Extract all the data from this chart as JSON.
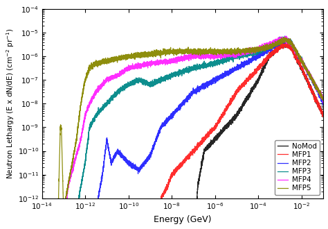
{
  "title": "",
  "xlabel": "Energy (GeV)",
  "ylabel": "Neutron Lethargy (E x dN/dE) (cm$^{-2}$ pr$^{-1}$)",
  "xlim_log": [
    -14,
    -1
  ],
  "ylim_log": [
    -12,
    -4
  ],
  "legend_labels": [
    "NoMod",
    "MFP1",
    "MFP2",
    "MFP3",
    "MFP4",
    "MFP5"
  ],
  "legend_colors": [
    "#1a1a1a",
    "#ff2222",
    "#2222ff",
    "#008888",
    "#ff22ff",
    "#888800"
  ],
  "background_color": "#ffffff",
  "figsize": [
    4.74,
    3.3
  ],
  "dpi": 100
}
